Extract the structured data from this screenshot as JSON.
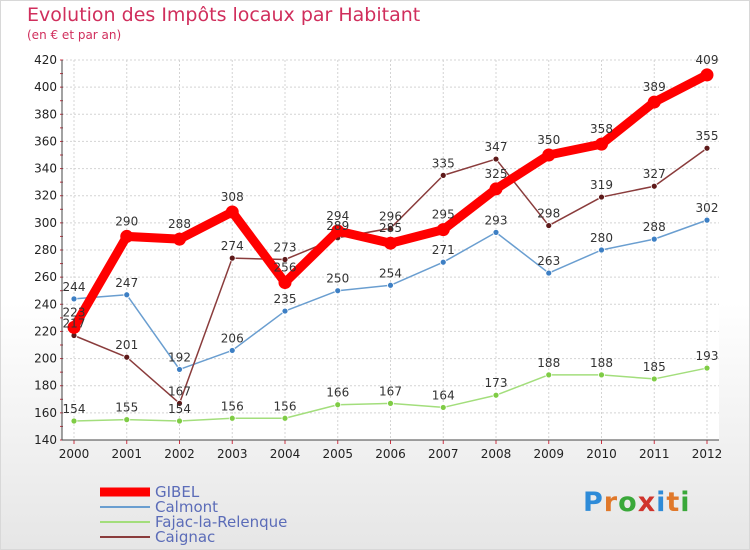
{
  "header": {
    "title": "Evolution des Impôts locaux par Habitant",
    "subtitle": "(en € et par an)"
  },
  "logo": {
    "text": "Proxiti",
    "letter_colors": [
      "#2e8bd8",
      "#e0782a",
      "#3aa83a",
      "#d0342c",
      "#2e8bd8",
      "#e0782a",
      "#3aa83a"
    ]
  },
  "chart_data": {
    "type": "line",
    "x": [
      "2000",
      "2001",
      "2002",
      "2003",
      "2004",
      "2005",
      "2006",
      "2007",
      "2008",
      "2009",
      "2010",
      "2011",
      "2012"
    ],
    "ylim": [
      140,
      420
    ],
    "yticks": [
      140,
      160,
      180,
      200,
      220,
      240,
      260,
      280,
      300,
      320,
      340,
      360,
      380,
      400,
      420
    ],
    "grid": true,
    "legend_position": "bottom-left",
    "series": [
      {
        "name": "Calmont",
        "color": "#6a9ed0",
        "point_color": "#3d7fc4",
        "values": [
          244,
          247,
          192,
          206,
          235,
          250,
          254,
          271,
          293,
          263,
          280,
          288,
          302
        ],
        "labels": [
          "244",
          "247",
          "192",
          "206",
          "235",
          "250",
          "254",
          "271",
          "293",
          "263",
          "280",
          "288",
          "302"
        ]
      },
      {
        "name": "Fajac-la-Relenque",
        "color": "#a3de7c",
        "point_color": "#7fcc45",
        "values": [
          154,
          155,
          154,
          156,
          156,
          166,
          167,
          164,
          173,
          188,
          188,
          185,
          193
        ],
        "labels": [
          "154",
          "155",
          "154",
          "156",
          "156",
          "166",
          "167",
          "164",
          "173",
          "188",
          "188",
          "185",
          "193"
        ]
      },
      {
        "name": "Caignac",
        "color": "#8a3c3c",
        "point_color": "#5e1a1a",
        "values": [
          217,
          201,
          167,
          274,
          273,
          289,
          296,
          335,
          347,
          298,
          319,
          327,
          355
        ],
        "labels": [
          "217",
          "201",
          "167",
          "274",
          "273",
          "289",
          "296",
          "335",
          "347",
          "298",
          "319",
          "327",
          "355"
        ]
      },
      {
        "name": "GIBEL",
        "color": "#ff0000",
        "point_color": "#ff0000",
        "values": [
          223,
          290,
          288,
          308,
          256,
          294,
          285,
          295,
          325,
          350,
          358,
          389,
          409
        ],
        "labels": [
          "223",
          "290",
          "288",
          "308",
          "256",
          "294",
          "285",
          "295",
          "325",
          "350",
          "358",
          "389",
          "409"
        ]
      }
    ]
  }
}
